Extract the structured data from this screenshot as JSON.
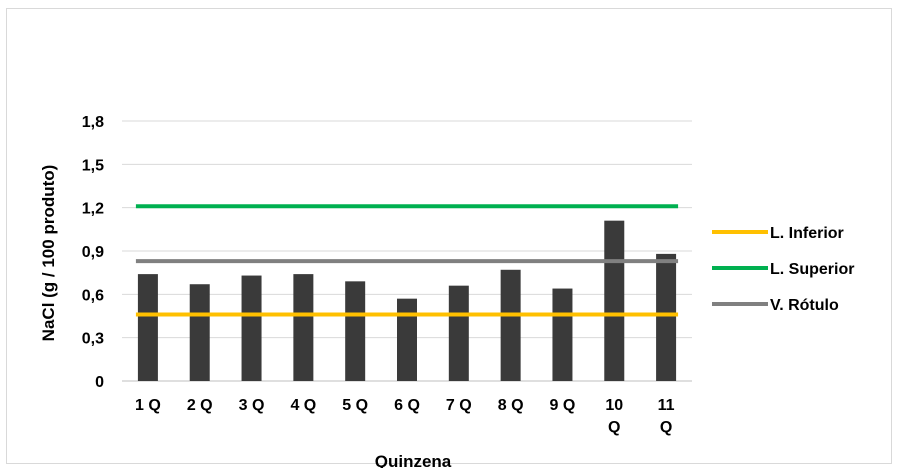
{
  "chart_data": {
    "type": "bar",
    "title": "",
    "xlabel": "Quinzena",
    "ylabel": "NaCl (g / 100 produto)",
    "ylim": [
      0,
      1.8
    ],
    "yticks": [
      "0",
      "0,3",
      "0,6",
      "0,9",
      "1,2",
      "1,5",
      "1,8"
    ],
    "ytick_values": [
      0,
      0.3,
      0.6,
      0.9,
      1.2,
      1.5,
      1.8
    ],
    "grid": true,
    "legend_position": "right",
    "categories": [
      "1 Q",
      "2 Q",
      "3 Q",
      "4 Q",
      "5 Q",
      "6 Q",
      "7 Q",
      "8 Q",
      "9 Q",
      "10\nQ",
      "11\nQ"
    ],
    "values": [
      0.74,
      0.67,
      0.73,
      0.74,
      0.69,
      0.57,
      0.66,
      0.77,
      0.64,
      1.11,
      0.88
    ],
    "bar_color": "#3a3a3a",
    "reference_lines": [
      {
        "name": "L. Inferior",
        "value": 0.46,
        "color": "#ffc000"
      },
      {
        "name": "L. Superior",
        "value": 1.21,
        "color": "#00b050"
      },
      {
        "name": "V. Rótulo",
        "value": 0.83,
        "color": "#808080"
      }
    ]
  }
}
